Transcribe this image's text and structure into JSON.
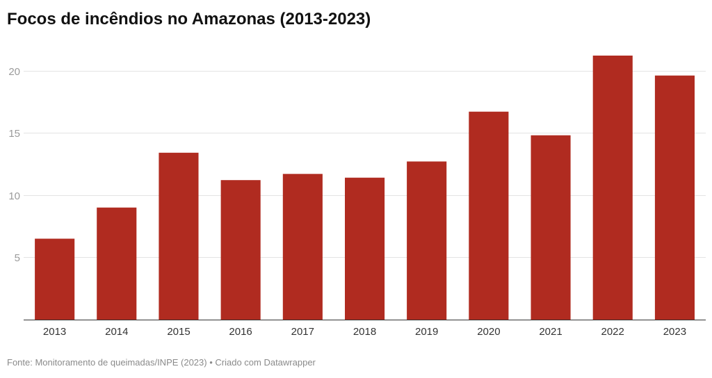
{
  "chart_data": {
    "type": "bar",
    "title": "Focos de incêndios no Amazonas (2013-2023)",
    "categories": [
      "2013",
      "2014",
      "2015",
      "2016",
      "2017",
      "2018",
      "2019",
      "2020",
      "2021",
      "2022",
      "2023"
    ],
    "values": [
      6.5,
      9.0,
      13.4,
      11.2,
      11.7,
      11.4,
      12.7,
      16.7,
      14.8,
      21.2,
      19.6
    ],
    "ylim": [
      0,
      21.2
    ],
    "yticks": [
      5,
      10,
      15,
      20
    ],
    "grid": true,
    "bar_color": "#b02b20"
  },
  "footer": "Fonte: Monitoramento de queimadas/INPE (2023) • Criado com Datawrapper"
}
